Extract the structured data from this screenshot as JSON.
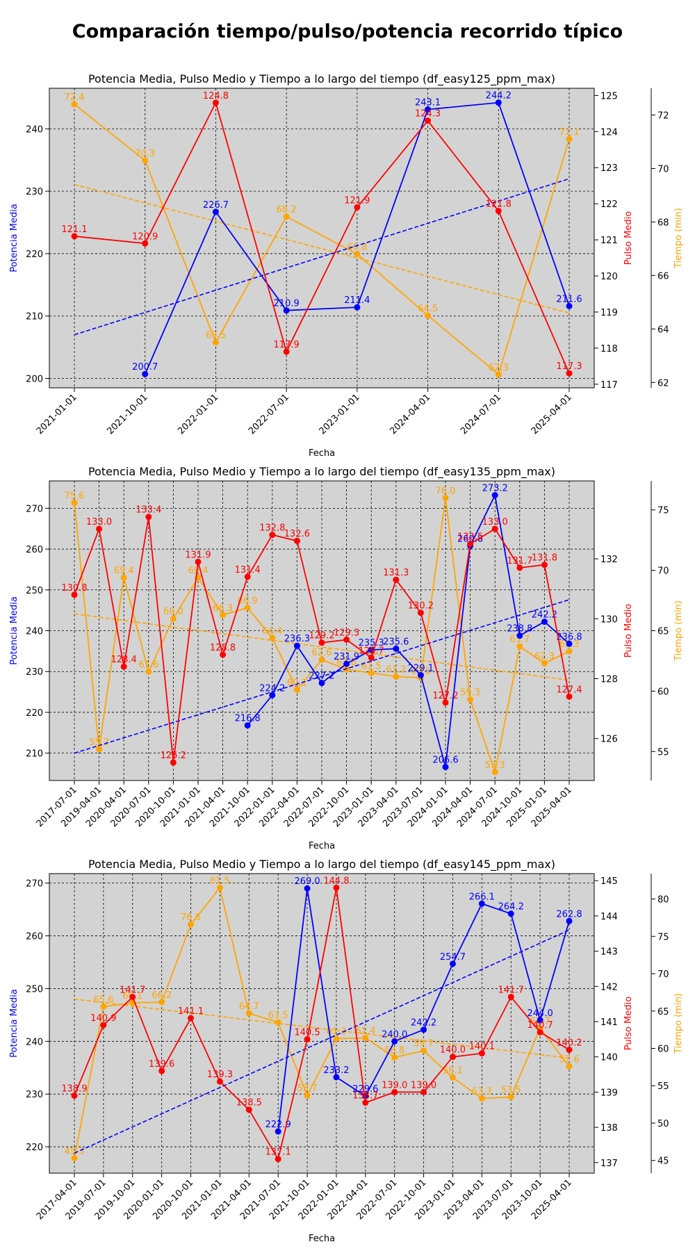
{
  "figure_title": "Comparación tiempo/pulso/potencia recorrido típico",
  "colors": {
    "power": "#0000ff",
    "pulse": "#ff0000",
    "time": "#ffa500",
    "panel_bg": "#d3d3d3",
    "grid": "#000000"
  },
  "chart_data": [
    {
      "type": "line",
      "title": "Potencia Media, Pulso Medio y Tiempo a lo largo del tiempo (df_easy125_ppm_max)",
      "xlabel": "Fecha",
      "categories": [
        "2021-01-01",
        "2021-10-01",
        "2022-01-01",
        "2022-07-01",
        "2023-01-01",
        "2024-04-01",
        "2024-07-01",
        "2025-04-01"
      ],
      "grid": true,
      "axes": [
        {
          "label": "Potencia Media",
          "color": "#0000ff",
          "side": "left",
          "range": [
            198.5,
            246.5
          ],
          "ticks": [
            200,
            210,
            220,
            230,
            240
          ]
        },
        {
          "label": "Pulso Medio",
          "color": "#ff0000",
          "side": "right",
          "range": [
            116.9,
            125.2
          ],
          "ticks": [
            117,
            118,
            119,
            120,
            121,
            122,
            123,
            124,
            125
          ]
        },
        {
          "label": "Tiempo (min)",
          "color": "#ffa500",
          "side": "right-outer",
          "range": [
            61.8,
            73.0
          ],
          "ticks": [
            62,
            64,
            66,
            68,
            70,
            72
          ]
        }
      ],
      "series": [
        {
          "axis": 0,
          "color": "#0000ff",
          "labels": [
            "",
            "200.7",
            "226.7",
            "210.9",
            "211.4",
            "243.1",
            "244.2",
            "211.6"
          ],
          "values": [
            null,
            200.7,
            226.7,
            210.9,
            211.4,
            243.1,
            244.2,
            211.6
          ],
          "trend": [
            207.0,
            232.0
          ]
        },
        {
          "axis": 1,
          "color": "#ff0000",
          "labels": [
            "121.1",
            "120.9",
            "124.8",
            "117.9",
            "121.9",
            "124.3",
            "121.8",
            "117.3"
          ],
          "values": [
            121.1,
            120.9,
            124.8,
            117.9,
            121.9,
            124.3,
            121.8,
            117.3
          ]
        },
        {
          "axis": 2,
          "color": "#ffa500",
          "labels": [
            "72.4",
            "70.3",
            "63.5",
            "68.2",
            "66.8",
            "64.5",
            "62.3",
            "71.1"
          ],
          "values": [
            72.4,
            70.3,
            63.5,
            68.2,
            66.8,
            64.5,
            62.3,
            71.1
          ],
          "trend": [
            69.4,
            64.6
          ]
        }
      ]
    },
    {
      "type": "line",
      "title": "Potencia Media, Pulso Medio y Tiempo a lo largo del tiempo (df_easy135_ppm_max)",
      "xlabel": "Fecha",
      "categories": [
        "2017-07-01",
        "2019-04-01",
        "2020-04-01",
        "2020-07-01",
        "2020-10-01",
        "2021-01-01",
        "2021-04-01",
        "2021-10-01",
        "2022-01-01",
        "2022-04-01",
        "2022-07-01",
        "2022-10-01",
        "2023-01-01",
        "2023-04-01",
        "2023-07-01",
        "2024-01-01",
        "2024-04-01",
        "2024-07-01",
        "2024-10-01",
        "2025-01-01",
        "2025-04-01"
      ],
      "grid": true,
      "axes": [
        {
          "label": "Potencia Media",
          "color": "#0000ff",
          "side": "left",
          "range": [
            203.3,
            276.7
          ],
          "ticks": [
            210,
            220,
            230,
            240,
            250,
            260,
            270
          ]
        },
        {
          "label": "Pulso Medio",
          "color": "#ff0000",
          "side": "right",
          "range": [
            124.6,
            134.6
          ],
          "ticks": [
            126,
            128,
            130,
            132
          ]
        },
        {
          "label": "Tiempo (min)",
          "color": "#ffa500",
          "side": "right-outer",
          "range": [
            52.6,
            77.4
          ],
          "ticks": [
            55,
            60,
            65,
            70,
            75
          ]
        }
      ],
      "series": [
        {
          "axis": 0,
          "color": "#0000ff",
          "labels": [
            "",
            "",
            "",
            "",
            "",
            "",
            "",
            "216.8",
            "224.2",
            "236.3",
            "227.2",
            "231.9",
            "235.3",
            "235.6",
            "229.1",
            "206.6",
            "260.8",
            "273.2",
            "238.8",
            "242.2",
            "236.8"
          ],
          "values": [
            null,
            null,
            null,
            null,
            null,
            null,
            null,
            216.8,
            224.2,
            236.3,
            227.2,
            231.9,
            235.3,
            235.6,
            229.1,
            206.6,
            260.8,
            273.2,
            238.8,
            242.2,
            236.8
          ],
          "trend": [
            210.0,
            247.6
          ]
        },
        {
          "axis": 1,
          "color": "#ff0000",
          "labels": [
            "130.8",
            "133.0",
            "128.4",
            "133.4",
            "125.2",
            "131.9",
            "128.8",
            "131.4",
            "132.8",
            "132.6",
            "129.2",
            "129.3",
            "128.7",
            "131.3",
            "130.2",
            "127.2",
            "132.5",
            "133.0",
            "131.7",
            "131.8",
            "127.4"
          ],
          "values": [
            130.8,
            133.0,
            128.4,
            133.4,
            125.2,
            131.9,
            128.8,
            131.4,
            132.8,
            132.6,
            129.2,
            129.3,
            128.7,
            131.3,
            130.2,
            127.2,
            132.5,
            133.0,
            131.7,
            131.8,
            127.4
          ]
        },
        {
          "axis": 2,
          "color": "#ffa500",
          "labels": [
            "75.6",
            "55.2",
            "69.4",
            "61.6",
            "66.0",
            "69.4",
            "66.3",
            "66.9",
            "64.4",
            "60.1",
            "62.6",
            "61.8",
            "61.5",
            "61.2",
            "61.1",
            "76.0",
            "59.3",
            "53.3",
            "63.7",
            "62.3",
            "63.3"
          ],
          "values": [
            75.6,
            55.2,
            69.4,
            61.6,
            66.0,
            69.4,
            66.3,
            66.9,
            64.4,
            60.1,
            62.6,
            61.8,
            61.5,
            61.2,
            61.1,
            76.0,
            59.3,
            53.3,
            63.7,
            62.3,
            63.3
          ],
          "trend": [
            66.4,
            60.9
          ]
        }
      ]
    },
    {
      "type": "line",
      "title": "Potencia Media, Pulso Medio y Tiempo a lo largo del tiempo (df_easy145_ppm_max)",
      "xlabel": "Fecha",
      "categories": [
        "2017-04-01",
        "2019-07-01",
        "2019-10-01",
        "2020-01-01",
        "2020-10-01",
        "2021-01-01",
        "2021-04-01",
        "2021-07-01",
        "2021-10-01",
        "2022-01-01",
        "2022-04-01",
        "2022-07-01",
        "2022-10-01",
        "2023-01-01",
        "2023-04-01",
        "2023-07-01",
        "2023-10-01",
        "2025-04-01"
      ],
      "grid": true,
      "axes": [
        {
          "label": "Potencia Media",
          "color": "#0000ff",
          "side": "left",
          "range": [
            215.0,
            271.8
          ],
          "ticks": [
            220,
            230,
            240,
            250,
            260,
            270
          ]
        },
        {
          "label": "Pulso Medio",
          "color": "#ff0000",
          "side": "right",
          "range": [
            136.7,
            145.2
          ],
          "ticks": [
            137,
            138,
            139,
            140,
            141,
            142,
            143,
            144,
            145
          ]
        },
        {
          "label": "Tiempo (min)",
          "color": "#ffa500",
          "side": "right-outer",
          "range": [
            43.3,
            83.4
          ],
          "ticks": [
            45,
            50,
            55,
            60,
            65,
            70,
            75,
            80
          ]
        }
      ],
      "series": [
        {
          "axis": 0,
          "color": "#0000ff",
          "labels": [
            "",
            "",
            "",
            "",
            "",
            "",
            "",
            "222.9",
            "269.0",
            "233.2",
            "229.6",
            "240.0",
            "242.2",
            "254.7",
            "266.1",
            "264.2",
            "244.0",
            "262.8"
          ],
          "values": [
            null,
            null,
            null,
            null,
            null,
            null,
            null,
            222.9,
            269.0,
            233.2,
            229.6,
            240.0,
            242.2,
            254.7,
            266.1,
            264.2,
            244.0,
            262.8
          ],
          "trend": [
            218.8,
            261.1
          ]
        },
        {
          "axis": 1,
          "color": "#ff0000",
          "labels": [
            "138.9",
            "140.9",
            "141.7",
            "139.6",
            "141.1",
            "139.3",
            "138.5",
            "137.1",
            "140.5",
            "144.8",
            "138.7",
            "139.0",
            "139.0",
            "140.0",
            "140.1",
            "141.7",
            "140.7",
            "140.2"
          ],
          "values": [
            138.9,
            140.9,
            141.7,
            139.6,
            141.1,
            139.3,
            138.5,
            137.1,
            140.5,
            144.8,
            138.7,
            139.0,
            139.0,
            140.0,
            140.1,
            141.7,
            140.7,
            140.2
          ]
        },
        {
          "axis": 2,
          "color": "#ffa500",
          "labels": [
            "45.3",
            "65.6",
            "66.1",
            "66.2",
            "76.6",
            "81.5",
            "64.7",
            "63.5",
            "53.7",
            "61.3",
            "61.4",
            "58.8",
            "59.7",
            "56.1",
            "53.3",
            "53.5",
            "62.7",
            "57.6"
          ],
          "values": [
            45.3,
            65.6,
            66.1,
            66.2,
            76.6,
            81.5,
            64.7,
            63.5,
            53.7,
            61.3,
            61.4,
            58.8,
            59.7,
            56.1,
            53.3,
            53.5,
            62.7,
            57.6
          ],
          "trend": [
            66.6,
            58.7
          ]
        }
      ]
    }
  ]
}
